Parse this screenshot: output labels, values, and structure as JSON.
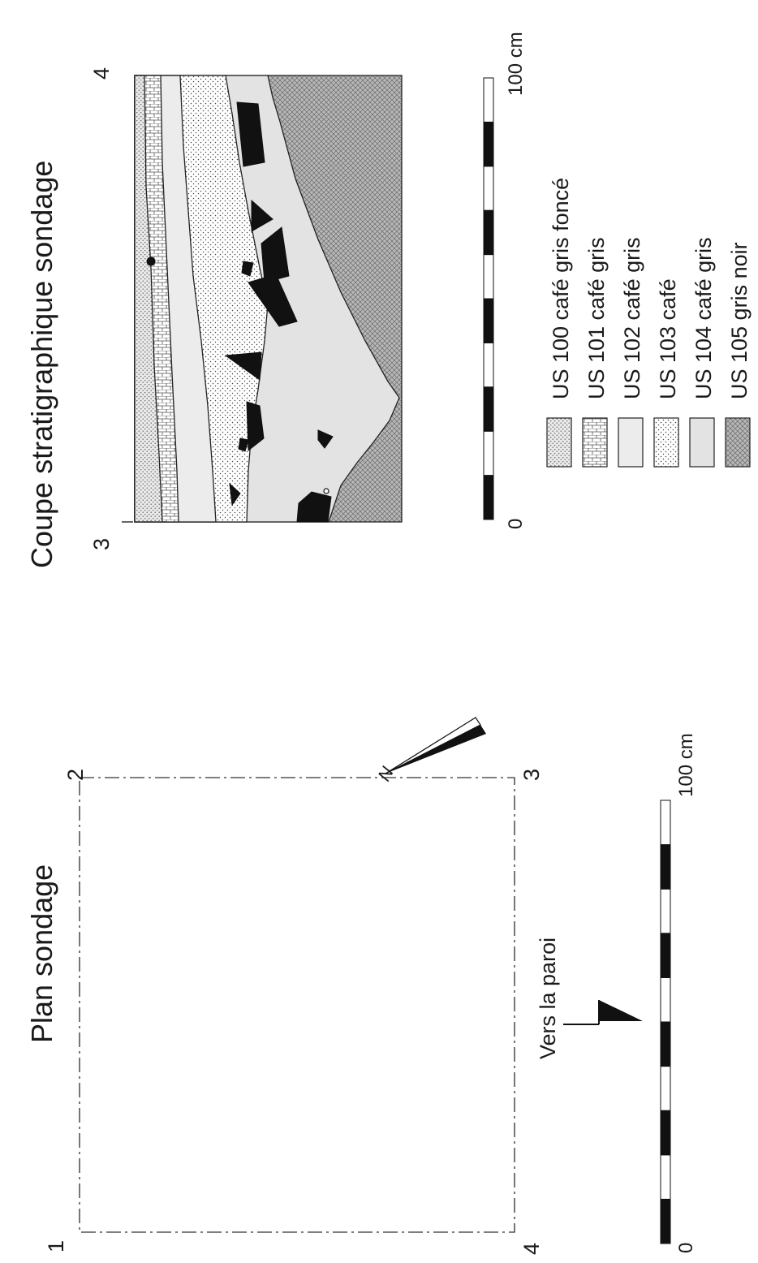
{
  "plan": {
    "title": "Plan sondage",
    "corners": {
      "c1": "1",
      "c2": "2",
      "c3": "3",
      "c4": "4"
    },
    "north_label": "N",
    "wall_label": "Vers la paroi",
    "scale": {
      "start": "0",
      "end": "100 cm",
      "segments": 10
    }
  },
  "section": {
    "title": "Coupe stratigraphique sondage",
    "end_left": "3",
    "end_right": "4",
    "scale": {
      "start": "0",
      "end": "100 cm",
      "segments": 10
    }
  },
  "legend": [
    {
      "label": "US 100 café gris foncé",
      "pattern": "hatch-dots"
    },
    {
      "label": "US 101 café gris",
      "pattern": "bricks"
    },
    {
      "label": "US 102 café gris",
      "pattern": "light-grey"
    },
    {
      "label": "US 103 café",
      "pattern": "dots"
    },
    {
      "label": "US 104 café gris",
      "pattern": "plain-grey"
    },
    {
      "label": "US 105 gris noir",
      "pattern": "dark-hatch"
    }
  ],
  "colors": {
    "ink": "#111111",
    "light_grey": "#e3e3e3",
    "mid_grey": "#d9d9d9",
    "dark_fill": "#b5b5b5"
  }
}
